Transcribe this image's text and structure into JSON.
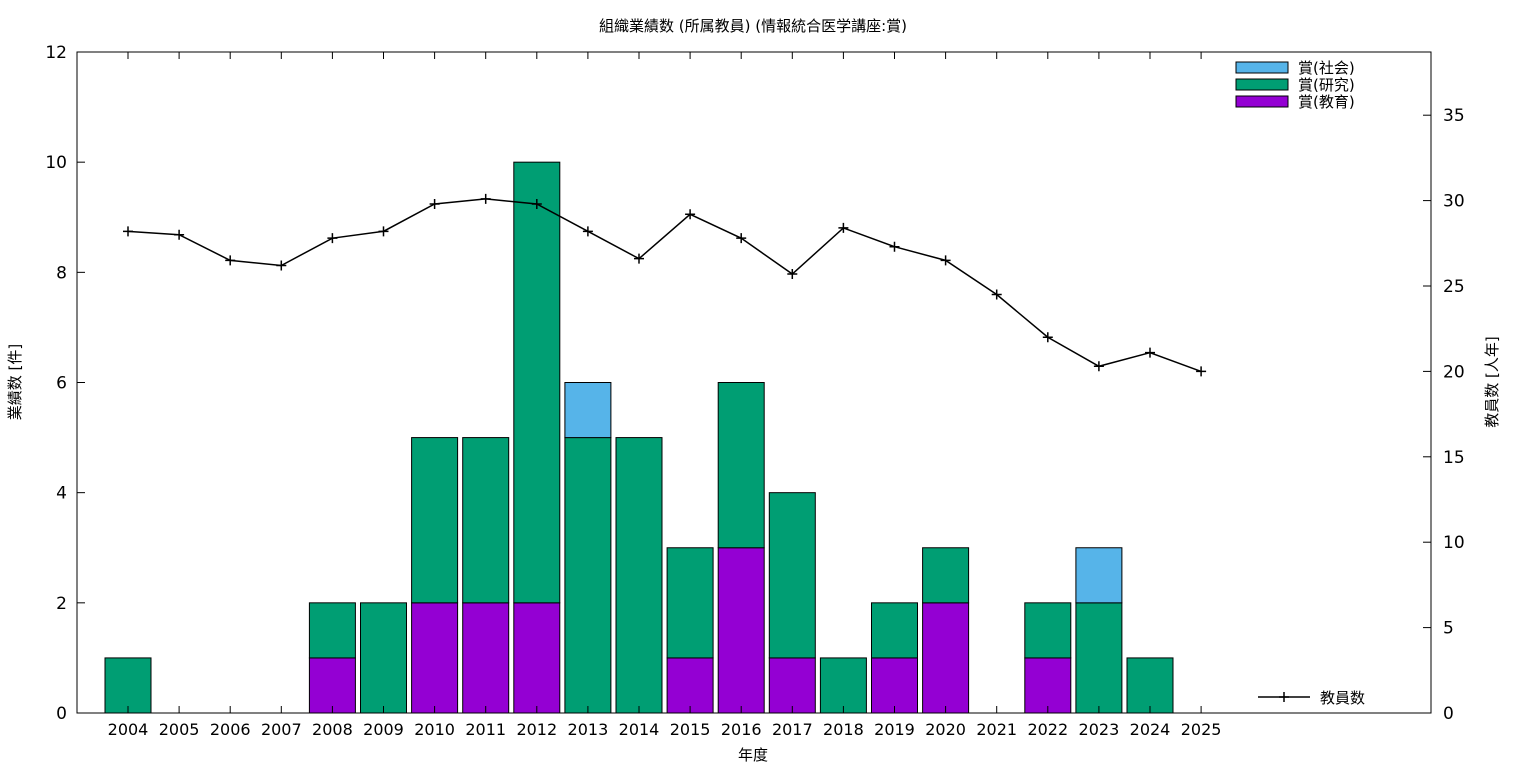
{
  "chart_data": {
    "type": "bar",
    "stacked": true,
    "title": "組織業績数 (所属教員) (情報統合医学講座:賞)",
    "xlabel": "年度",
    "ylabel": "業績数 [件]",
    "y2label": "教員数 [人年]",
    "categories": [
      "2004",
      "2005",
      "2006",
      "2007",
      "2008",
      "2009",
      "2010",
      "2011",
      "2012",
      "2013",
      "2014",
      "2015",
      "2016",
      "2017",
      "2018",
      "2019",
      "2020",
      "2021",
      "2022",
      "2023",
      "2024",
      "2025"
    ],
    "ylim": [
      0,
      12
    ],
    "yticks": [
      "0",
      "2",
      "4",
      "6",
      "8",
      "10",
      "12"
    ],
    "y2lim": [
      0,
      38.7
    ],
    "y2ticks": [
      "0",
      "5",
      "10",
      "15",
      "20",
      "25",
      "30",
      "35"
    ],
    "grid": false,
    "legend_position": "top-right",
    "series": [
      {
        "name": "賞(教育)",
        "color": "#9400d3",
        "values": [
          0,
          0,
          0,
          0,
          1,
          0,
          2,
          2,
          2,
          0,
          0,
          1,
          3,
          1,
          0,
          1,
          2,
          0,
          1,
          0,
          0,
          0
        ]
      },
      {
        "name": "賞(研究)",
        "color": "#009e73",
        "values": [
          1,
          0,
          0,
          0,
          1,
          2,
          3,
          3,
          8,
          5,
          5,
          2,
          3,
          3,
          1,
          1,
          1,
          0,
          1,
          2,
          1,
          0
        ]
      },
      {
        "name": "賞(社会)",
        "color": "#56b4e9",
        "values": [
          0,
          0,
          0,
          0,
          0,
          0,
          0,
          0,
          0,
          1,
          0,
          0,
          0,
          0,
          0,
          0,
          0,
          0,
          0,
          1,
          0,
          0
        ]
      }
    ],
    "line_series": {
      "name": "教員数",
      "color": "#000000",
      "axis": "right",
      "values": [
        28.2,
        28.0,
        26.5,
        26.2,
        27.8,
        28.2,
        29.8,
        30.1,
        29.8,
        28.2,
        26.6,
        29.2,
        27.8,
        25.7,
        28.4,
        27.3,
        26.5,
        24.5,
        22.0,
        20.3,
        21.1,
        20.0
      ]
    }
  }
}
